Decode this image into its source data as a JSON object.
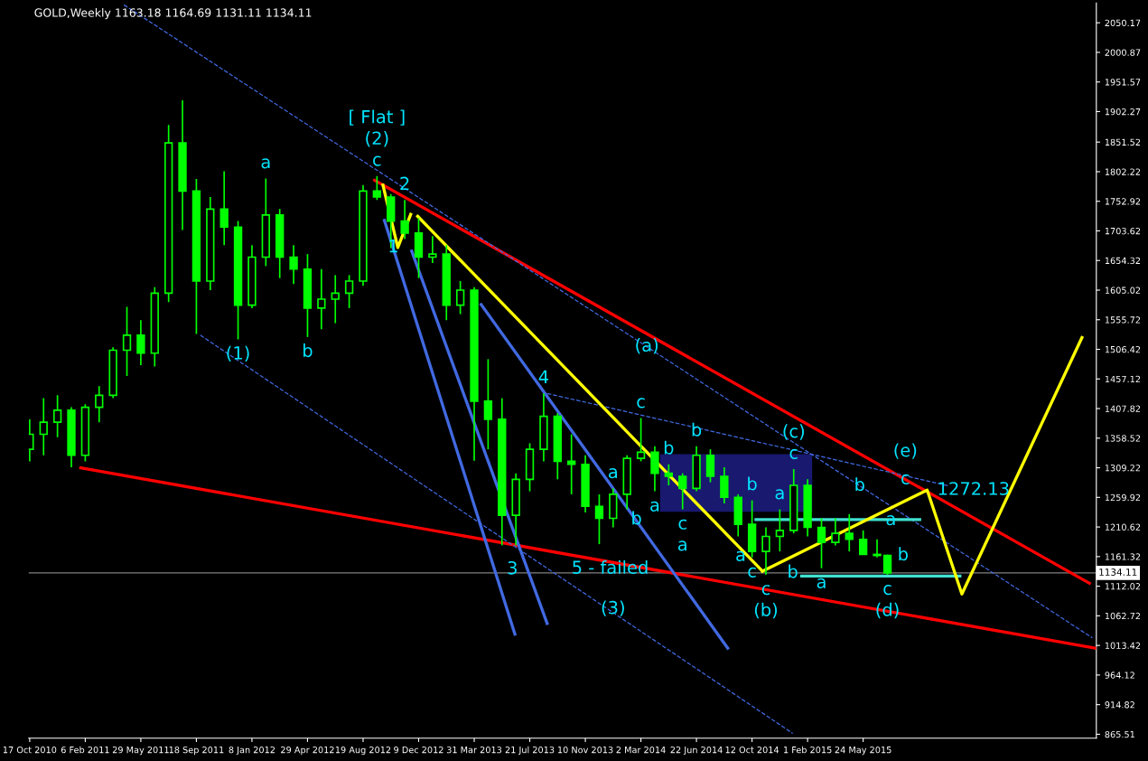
{
  "chart_data": {
    "type": "candlestick",
    "title": "GOLD,Weekly 1163.18 1164.69 1131.11 1134.11",
    "color": "#00ff00",
    "x": [
      "2010-10-17",
      "2010-11-14",
      "2010-12-12",
      "2011-01-09",
      "2011-02-06",
      "2011-03-06",
      "2011-04-03",
      "2011-05-01",
      "2011-05-29",
      "2011-06-26",
      "2011-07-24",
      "2011-08-21",
      "2011-09-18",
      "2011-10-16",
      "2011-11-13",
      "2011-12-11",
      "2012-01-08",
      "2012-02-05",
      "2012-03-04",
      "2012-04-01",
      "2012-04-29",
      "2012-05-27",
      "2012-06-24",
      "2012-07-22",
      "2012-08-19",
      "2012-09-16",
      "2012-10-14",
      "2012-11-11",
      "2012-12-09",
      "2013-01-06",
      "2013-02-03",
      "2013-03-03",
      "2013-03-31",
      "2013-04-28",
      "2013-05-26",
      "2013-06-23",
      "2013-07-21",
      "2013-08-18",
      "2013-09-15",
      "2013-10-13",
      "2013-11-10",
      "2013-12-08",
      "2014-01-05",
      "2014-02-02",
      "2014-03-02",
      "2014-03-30",
      "2014-04-27",
      "2014-05-25",
      "2014-06-22",
      "2014-07-20",
      "2014-08-17",
      "2014-09-14",
      "2014-10-12",
      "2014-11-09",
      "2014-12-07",
      "2015-01-04",
      "2015-02-01",
      "2015-03-01",
      "2015-03-29",
      "2015-04-26",
      "2015-05-24",
      "2015-06-21",
      "2015-07-12"
    ],
    "ohlc": [
      [
        1340,
        1390,
        1320,
        1365
      ],
      [
        1365,
        1425,
        1330,
        1385
      ],
      [
        1385,
        1430,
        1360,
        1405
      ],
      [
        1405,
        1410,
        1310,
        1330
      ],
      [
        1330,
        1415,
        1320,
        1410
      ],
      [
        1410,
        1445,
        1385,
        1430
      ],
      [
        1430,
        1510,
        1425,
        1505
      ],
      [
        1505,
        1577,
        1462,
        1530
      ],
      [
        1530,
        1555,
        1480,
        1500
      ],
      [
        1500,
        1610,
        1478,
        1600
      ],
      [
        1600,
        1880,
        1585,
        1850
      ],
      [
        1850,
        1921,
        1705,
        1770
      ],
      [
        1770,
        1790,
        1532,
        1620
      ],
      [
        1620,
        1760,
        1605,
        1740
      ],
      [
        1740,
        1803,
        1680,
        1710
      ],
      [
        1710,
        1720,
        1523,
        1580
      ],
      [
        1580,
        1680,
        1575,
        1660
      ],
      [
        1660,
        1791,
        1645,
        1730
      ],
      [
        1730,
        1740,
        1625,
        1660
      ],
      [
        1660,
        1680,
        1615,
        1640
      ],
      [
        1640,
        1665,
        1527,
        1575
      ],
      [
        1575,
        1640,
        1540,
        1590
      ],
      [
        1590,
        1630,
        1550,
        1600
      ],
      [
        1600,
        1630,
        1575,
        1620
      ],
      [
        1620,
        1780,
        1612,
        1770
      ],
      [
        1770,
        1795,
        1755,
        1760
      ],
      [
        1760,
        1765,
        1675,
        1720
      ],
      [
        1720,
        1755,
        1690,
        1700
      ],
      [
        1700,
        1725,
        1625,
        1660
      ],
      [
        1660,
        1695,
        1650,
        1665
      ],
      [
        1665,
        1680,
        1555,
        1580
      ],
      [
        1580,
        1620,
        1565,
        1605
      ],
      [
        1605,
        1610,
        1321,
        1420
      ],
      [
        1420,
        1490,
        1340,
        1390
      ],
      [
        1390,
        1425,
        1180,
        1230
      ],
      [
        1230,
        1300,
        1180,
        1290
      ],
      [
        1290,
        1350,
        1270,
        1340
      ],
      [
        1340,
        1433,
        1320,
        1395
      ],
      [
        1395,
        1400,
        1290,
        1320
      ],
      [
        1320,
        1365,
        1265,
        1315
      ],
      [
        1315,
        1330,
        1235,
        1245
      ],
      [
        1245,
        1265,
        1182,
        1225
      ],
      [
        1225,
        1275,
        1210,
        1265
      ],
      [
        1265,
        1330,
        1240,
        1325
      ],
      [
        1325,
        1392,
        1320,
        1335
      ],
      [
        1335,
        1345,
        1270,
        1300
      ],
      [
        1300,
        1315,
        1280,
        1295
      ],
      [
        1295,
        1300,
        1240,
        1275
      ],
      [
        1275,
        1345,
        1270,
        1330
      ],
      [
        1330,
        1340,
        1285,
        1295
      ],
      [
        1295,
        1310,
        1250,
        1260
      ],
      [
        1260,
        1265,
        1195,
        1215
      ],
      [
        1215,
        1255,
        1160,
        1170
      ],
      [
        1170,
        1210,
        1131,
        1195
      ],
      [
        1195,
        1240,
        1170,
        1205
      ],
      [
        1205,
        1307,
        1200,
        1280
      ],
      [
        1280,
        1290,
        1195,
        1210
      ],
      [
        1210,
        1225,
        1142,
        1185
      ],
      [
        1185,
        1225,
        1180,
        1200
      ],
      [
        1200,
        1232,
        1170,
        1190
      ],
      [
        1190,
        1205,
        1165,
        1165
      ],
      [
        1165,
        1190,
        1160,
        1163.18
      ],
      [
        1163.18,
        1164.69,
        1131.11,
        1134.11
      ]
    ],
    "series": [
      {
        "type": "area",
        "color": "#191970",
        "x": [
          "2014-04-11",
          "2015-02-09",
          "2015-02-09",
          "2014-04-11"
        ],
        "values": [
          1331,
          1331,
          1237,
          1237
        ]
      },
      {
        "type": "line",
        "color": "#ff0000",
        "line_style": "solid",
        "x": [
          "2012-09-11",
          "2016-08-22"
        ],
        "values": [
          1788,
          1117
        ]
      },
      {
        "type": "line",
        "color": "#ff0000",
        "line_style": "solid",
        "x": [
          "2011-01-28",
          "2016-09-02"
        ],
        "values": [
          1309,
          1009
        ]
      },
      {
        "type": "line",
        "color": "#4169e1",
        "line_style": "solid",
        "x": [
          "2012-10-01",
          "2013-06-21"
        ],
        "values": [
          1721,
          1032
        ]
      },
      {
        "type": "line",
        "color": "#4169e1",
        "line_style": "solid",
        "x": [
          "2012-11-25",
          "2013-08-25"
        ],
        "values": [
          1670,
          1050
        ]
      },
      {
        "type": "line",
        "color": "#4169e1",
        "line_style": "solid",
        "x": [
          "2013-04-14",
          "2014-08-24"
        ],
        "values": [
          1581,
          1009
        ]
      },
      {
        "type": "line",
        "color": "#4169e1",
        "line_style": "dashed",
        "x": [
          "2011-04-25",
          "2016-08-28"
        ],
        "values": [
          2080,
          1026
        ]
      },
      {
        "type": "line",
        "color": "#4169e1",
        "line_style": "dashed",
        "x": [
          "2011-09-26",
          "2015-01-02"
        ],
        "values": [
          1530,
          867
        ]
      },
      {
        "type": "line",
        "color": "#4169e1",
        "line_style": "dashed",
        "x": [
          "2013-08-25",
          "2015-11-13"
        ],
        "values": [
          1433,
          1279
        ]
      },
      {
        "type": "line",
        "color": "#40e0d0",
        "line_style": "solid",
        "x": [
          "2014-10-20",
          "2015-09-15"
        ],
        "values": [
          1223,
          1223
        ]
      },
      {
        "type": "line",
        "color": "#40e0d0",
        "line_style": "solid",
        "x": [
          "2015-01-20",
          "2015-12-05"
        ],
        "values": [
          1129,
          1129
        ]
      },
      {
        "type": "line",
        "color": "#ffff00",
        "line_style": "solid",
        "x": [
          "2012-09-28",
          "2012-10-28",
          "2012-11-23"
        ],
        "values": [
          1780,
          1676,
          1731
        ]
      },
      {
        "type": "line",
        "color": "#ffff00",
        "line_style": "solid",
        "x": [
          "2012-12-07",
          "2014-11-02"
        ],
        "values": [
          1728,
          1137
        ]
      },
      {
        "type": "line",
        "color": "#ffff00",
        "line_style": "solid",
        "x": [
          "2014-11-02",
          "2015-09-30",
          "2015-12-09",
          "2016-08-07"
        ],
        "values": [
          1137,
          1272.13,
          1099,
          1526
        ]
      }
    ],
    "xlim": [
      "2010-10-15",
      "2016-09-05"
    ],
    "ylim": [
      859,
      2083
    ],
    "xticks": [
      {
        "value": "2010-10-17",
        "label": "17 Oct 2010"
      },
      {
        "value": "2011-02-06",
        "label": "6 Feb 2011"
      },
      {
        "value": "2011-05-29",
        "label": "29 May 2011"
      },
      {
        "value": "2011-09-18",
        "label": "18 Sep 2011"
      },
      {
        "value": "2012-01-08",
        "label": "8 Jan 2012"
      },
      {
        "value": "2012-04-29",
        "label": "29 Apr 2012"
      },
      {
        "value": "2012-08-19",
        "label": "19 Aug 2012"
      },
      {
        "value": "2012-12-09",
        "label": "9 Dec 2012"
      },
      {
        "value": "2013-03-31",
        "label": "31 Mar 2013"
      },
      {
        "value": "2013-07-21",
        "label": "21 Jul 2013"
      },
      {
        "value": "2013-11-10",
        "label": "10 Nov 2013"
      },
      {
        "value": "2014-03-02",
        "label": "2 Mar 2014"
      },
      {
        "value": "2014-06-22",
        "label": "22 Jun 2014"
      },
      {
        "value": "2014-10-12",
        "label": "12 Oct 2014"
      },
      {
        "value": "2015-02-01",
        "label": "1 Feb 2015"
      },
      {
        "value": "2015-05-24",
        "label": "24 May 2015"
      }
    ],
    "yticks": [
      865.51,
      914.82,
      964.12,
      1013.42,
      1062.72,
      1112.02,
      1161.32,
      1210.62,
      1259.92,
      1309.22,
      1358.52,
      1407.82,
      1457.12,
      1506.42,
      1555.72,
      1605.02,
      1654.32,
      1703.62,
      1752.92,
      1802.22,
      1851.52,
      1902.27,
      1951.57,
      2000.87,
      2050.17
    ],
    "ref_lines": [
      {
        "axis": "y",
        "value": 1134.11,
        "label": "1134.11",
        "color": "#808080"
      }
    ],
    "annotations": [
      {
        "text": "[ Flat ]",
        "x": "2012-09-16",
        "y": 1795
      },
      {
        "text": "(2)",
        "x": "2012-09-16",
        "y": 1795
      },
      {
        "text": "c",
        "x": "2012-09-16",
        "y": 1795
      },
      {
        "text": "2",
        "x": "2012-11-11",
        "y": 1755
      },
      {
        "text": "1",
        "x": "2012-10-19",
        "y": 1676
      },
      {
        "text": "a",
        "x": "2012-02-05",
        "y": 1791
      },
      {
        "text": "(1)",
        "x": "2011-12-11",
        "y": 1523
      },
      {
        "text": "b",
        "x": "2012-04-29",
        "y": 1527
      },
      {
        "text": "4",
        "x": "2013-08-18",
        "y": 1433
      },
      {
        "text": "3",
        "x": "2013-06-16",
        "y": 1140
      },
      {
        "text": "5 - failed",
        "x": "2013-12-30",
        "y": 1141
      },
      {
        "text": "(3)",
        "x": "2014-01-05",
        "y": 1074
      },
      {
        "text": "(a)",
        "x": "2014-03-14",
        "y": 1511
      },
      {
        "text": "c",
        "x": "2014-03-02",
        "y": 1392
      },
      {
        "text": "a",
        "x": "2014-01-05",
        "y": 1275
      },
      {
        "text": "b",
        "x": "2014-02-21",
        "y": 1223
      },
      {
        "text": "a",
        "x": "2014-03-30",
        "y": 1270
      },
      {
        "text": "b",
        "x": "2014-04-27",
        "y": 1315
      },
      {
        "text": "c",
        "x": "2014-05-25",
        "y": 1240
      },
      {
        "text": "a",
        "x": "2014-05-25",
        "y": 1240
      },
      {
        "text": "b",
        "x": "2014-06-22",
        "y": 1345
      },
      {
        "text": "b",
        "x": "2014-10-12",
        "y": 1255
      },
      {
        "text": "a",
        "x": "2014-12-07",
        "y": 1240
      },
      {
        "text": "(c)",
        "x": "2015-01-04",
        "y": 1307
      },
      {
        "text": "c",
        "x": "2015-01-04",
        "y": 1307
      },
      {
        "text": "a",
        "x": "2014-09-19",
        "y": 1162
      },
      {
        "text": "c",
        "x": "2014-10-12",
        "y": 1160
      },
      {
        "text": "b",
        "x": "2015-01-02",
        "y": 1134
      },
      {
        "text": "c",
        "x": "2014-11-09",
        "y": 1131
      },
      {
        "text": "(b)",
        "x": "2014-11-09",
        "y": 1131
      },
      {
        "text": "a",
        "x": "2015-03-01",
        "y": 1142
      },
      {
        "text": "b",
        "x": "2015-05-17",
        "y": 1279
      },
      {
        "text": "a",
        "x": "2015-07-19",
        "y": 1222
      },
      {
        "text": "b",
        "x": "2015-07-12",
        "y": 1163.18
      },
      {
        "text": "c",
        "x": "2015-07-12",
        "y": 1131.11
      },
      {
        "text": "(e)",
        "x": "2015-08-17",
        "y": 1290
      },
      {
        "text": "c",
        "x": "2015-08-17",
        "y": 1290
      },
      {
        "text": "(d)",
        "x": "2015-07-12",
        "y": 1131.11
      },
      {
        "text": "1272.13",
        "x": "2015-09-30",
        "y": 1272.13
      }
    ]
  }
}
